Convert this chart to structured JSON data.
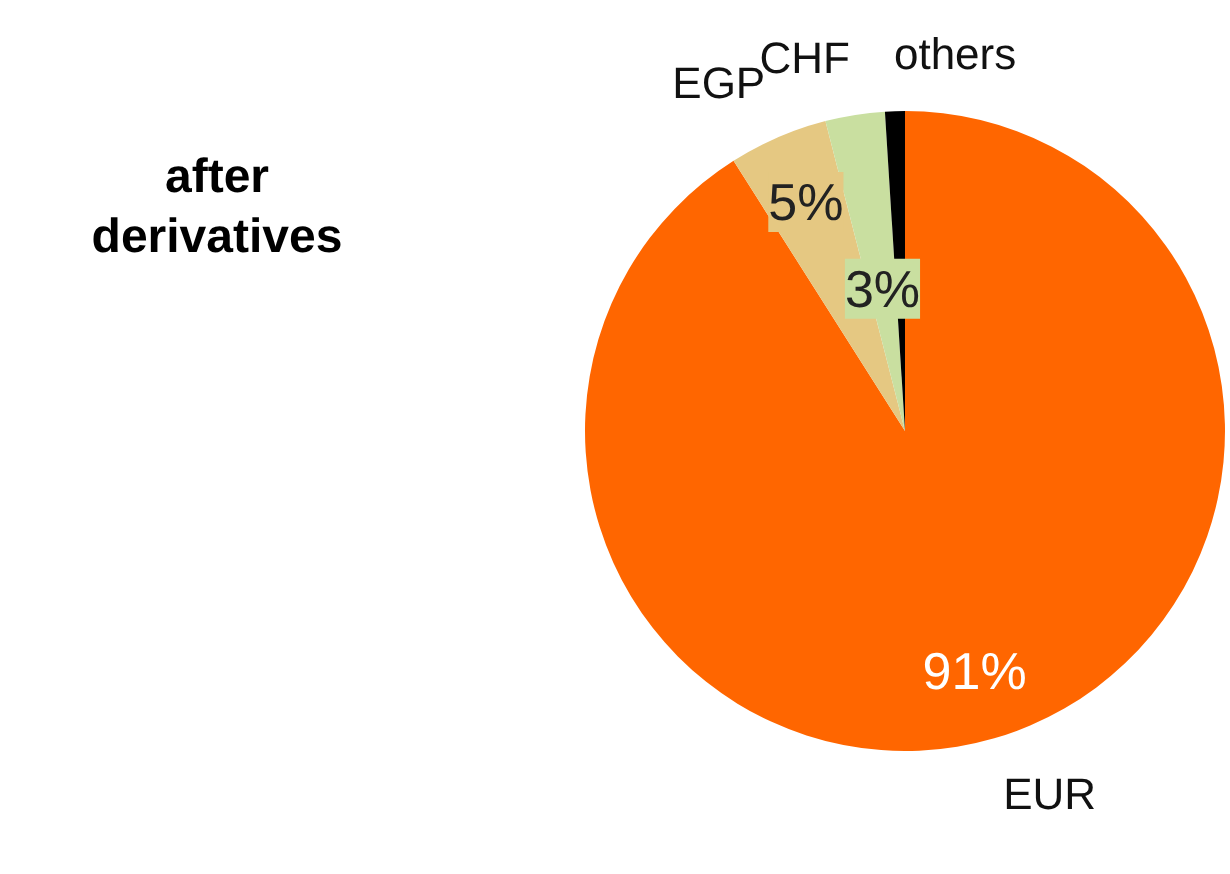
{
  "chart_data": {
    "type": "pie",
    "title": "after\nderivatives",
    "categories": [
      "EUR",
      "EGP",
      "CHF",
      "others"
    ],
    "values": [
      91,
      5,
      3,
      1
    ],
    "colors": [
      "#ff6600",
      "#e5c882",
      "#c9dfa0",
      "#000000"
    ],
    "value_labels": [
      "91%",
      "5%",
      "3%",
      null
    ]
  }
}
